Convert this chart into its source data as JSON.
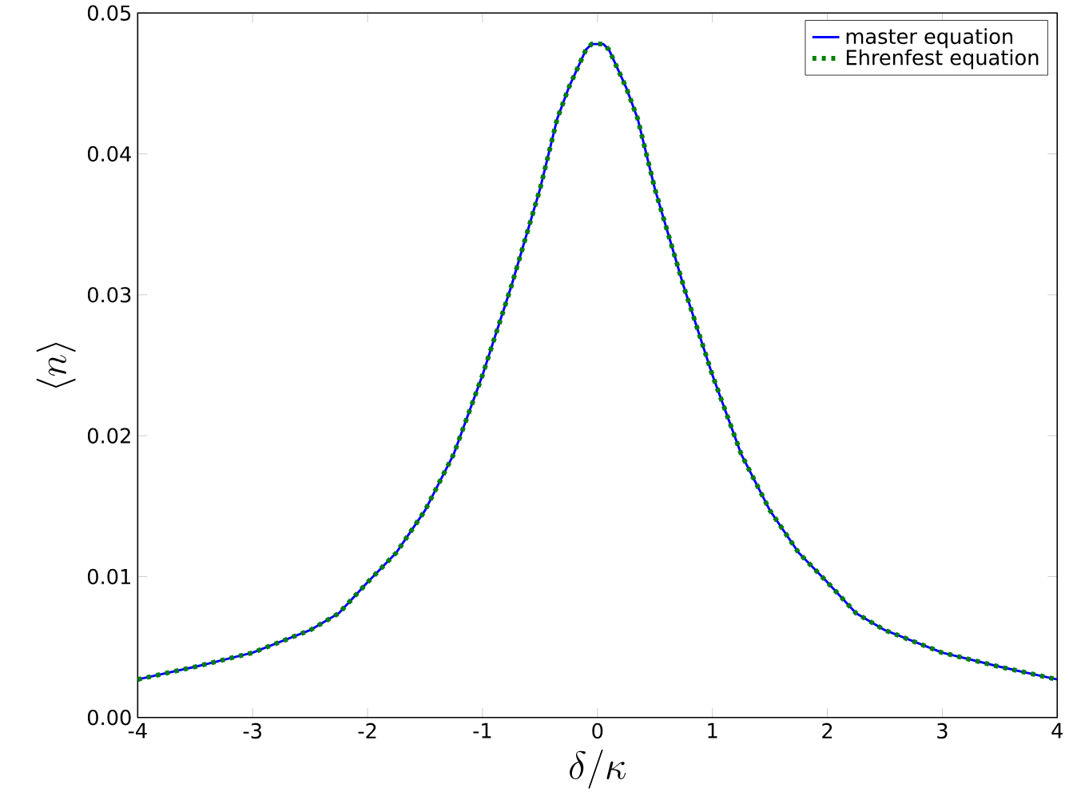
{
  "chart_data": {
    "type": "line",
    "xlabel": "\\delta/\\kappa",
    "ylabel": "\\langle n\\rangle",
    "x": [
      -4,
      -3.5,
      -3,
      -2.5,
      -2.25,
      -2,
      -1.75,
      -1.5,
      -1.25,
      -1,
      -0.75,
      -0.5,
      -0.35,
      -0.25,
      -0.1,
      -0.05,
      0.05,
      0.1,
      0.25,
      0.35,
      0.5,
      0.75,
      1,
      1.25,
      1.5,
      1.75,
      2,
      2.25,
      2.5,
      3,
      3.5,
      4
    ],
    "series": [
      {
        "name": "master equation",
        "color": "#0000ff",
        "line_style": "solid",
        "values": [
          0.0027,
          0.0036,
          0.0046,
          0.0062,
          0.0074,
          0.0096,
          0.0117,
          0.0147,
          0.0187,
          0.0243,
          0.0306,
          0.0375,
          0.0425,
          0.0447,
          0.0474,
          0.0478,
          0.0478,
          0.0474,
          0.0447,
          0.0425,
          0.0375,
          0.0306,
          0.0243,
          0.0187,
          0.0147,
          0.0117,
          0.0096,
          0.0074,
          0.0062,
          0.0046,
          0.0036,
          0.0027
        ]
      },
      {
        "name": "Ehrenfest equation",
        "color": "#008000",
        "line_style": "dotted",
        "values": [
          0.0027,
          0.0036,
          0.0046,
          0.0062,
          0.0074,
          0.0096,
          0.0117,
          0.0147,
          0.0187,
          0.0243,
          0.0306,
          0.0375,
          0.0425,
          0.0447,
          0.0474,
          0.0478,
          0.0478,
          0.0474,
          0.0447,
          0.0425,
          0.0375,
          0.0306,
          0.0243,
          0.0187,
          0.0147,
          0.0117,
          0.0096,
          0.0074,
          0.0062,
          0.0046,
          0.0036,
          0.0027
        ]
      }
    ],
    "xlim": [
      -4,
      4
    ],
    "ylim": [
      0,
      0.05
    ],
    "xticks": [
      -4,
      -3,
      -2,
      -1,
      0,
      1,
      2,
      3,
      4
    ],
    "yticks": [
      {
        "value": 0,
        "label": "0.00"
      },
      {
        "value": 0.01,
        "label": "0.01"
      },
      {
        "value": 0.02,
        "label": "0.02"
      },
      {
        "value": 0.03,
        "label": "0.03"
      },
      {
        "value": 0.04,
        "label": "0.04"
      },
      {
        "value": 0.05,
        "label": "0.05"
      }
    ],
    "legend": "top right",
    "grid": false
  }
}
